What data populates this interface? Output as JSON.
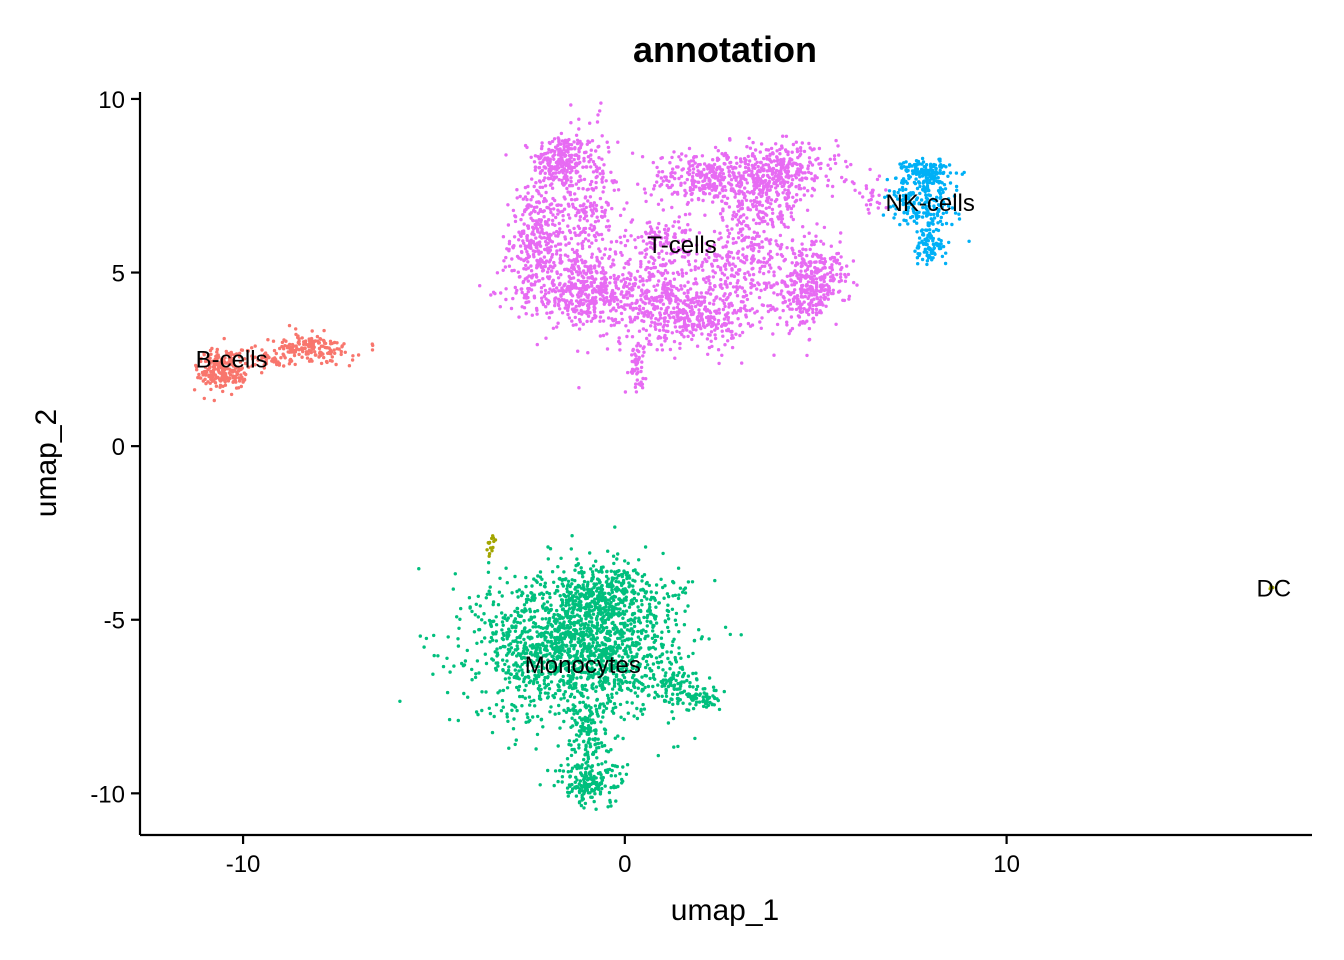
{
  "chart_data": {
    "type": "scatter",
    "title": "annotation",
    "xlabel": "umap_1",
    "ylabel": "umap_2",
    "xlim": [
      -12.7,
      18.0
    ],
    "ylim": [
      -11.2,
      10.2
    ],
    "x_ticks": [
      -10,
      0,
      10
    ],
    "x_tick_labels": [
      "-10",
      "0",
      "10"
    ],
    "y_ticks": [
      10,
      5,
      0,
      -5,
      -10
    ],
    "y_tick_labels": [
      "10",
      "5",
      "0",
      "-5",
      "-10"
    ],
    "grid": false,
    "legend": "none",
    "series": [
      {
        "name": "B-cells",
        "color": "#F8766D",
        "label_pos": [
          -10.3,
          2.5
        ],
        "blobs": [
          {
            "cx": -10.5,
            "cy": 2.2,
            "sx": 0.35,
            "sy": 0.32,
            "n": 230
          },
          {
            "cx": -9.2,
            "cy": 2.5,
            "sx": 0.35,
            "sy": 0.15,
            "n": 50
          },
          {
            "cx": -8.2,
            "cy": 2.8,
            "sx": 0.5,
            "sy": 0.2,
            "n": 160
          }
        ]
      },
      {
        "name": "DC",
        "color": "#A3A500",
        "label_pos": [
          17.0,
          -4.1
        ],
        "blobs": [
          {
            "cx": -3.5,
            "cy": -2.8,
            "sx": 0.06,
            "sy": 0.12,
            "n": 14
          },
          {
            "cx": 16.9,
            "cy": -4.1,
            "sx": 0.03,
            "sy": 0.03,
            "n": 3
          }
        ]
      },
      {
        "name": "Monocytes",
        "color": "#00BF7D",
        "label_pos": [
          -1.1,
          -6.3
        ],
        "blobs": [
          {
            "cx": -1.2,
            "cy": -5.8,
            "sx": 1.3,
            "sy": 1.05,
            "n": 1700
          },
          {
            "cx": -0.6,
            "cy": -4.2,
            "sx": 0.8,
            "sy": 0.4,
            "n": 300
          },
          {
            "cx": -1.0,
            "cy": -8.4,
            "sx": 0.25,
            "sy": 0.6,
            "n": 120
          },
          {
            "cx": -0.9,
            "cy": -9.7,
            "sx": 0.45,
            "sy": 0.3,
            "n": 170
          },
          {
            "cx": 1.2,
            "cy": -6.9,
            "sx": 0.5,
            "sy": 0.2,
            "n": 60
          },
          {
            "cx": 1.9,
            "cy": -7.3,
            "sx": 0.3,
            "sy": 0.15,
            "n": 70
          }
        ]
      },
      {
        "name": "NK-cells",
        "color": "#00B0F6",
        "label_pos": [
          8.0,
          7.0
        ],
        "blobs": [
          {
            "cx": 7.9,
            "cy": 7.9,
            "sx": 0.3,
            "sy": 0.2,
            "n": 150
          },
          {
            "cx": 7.8,
            "cy": 6.9,
            "sx": 0.45,
            "sy": 0.35,
            "n": 180
          },
          {
            "cx": 8.0,
            "cy": 5.8,
            "sx": 0.2,
            "sy": 0.3,
            "n": 90
          }
        ]
      },
      {
        "name": "T-cells",
        "color": "#E76BF3",
        "label_pos": [
          1.5,
          5.8
        ],
        "blobs": [
          {
            "cx": -1.7,
            "cy": 8.2,
            "sx": 0.35,
            "sy": 0.4,
            "n": 220
          },
          {
            "cx": -2.3,
            "cy": 6.0,
            "sx": 0.35,
            "sy": 0.8,
            "n": 300
          },
          {
            "cx": -1.0,
            "cy": 6.7,
            "sx": 0.4,
            "sy": 1.3,
            "n": 300
          },
          {
            "cx": -1.3,
            "cy": 4.5,
            "sx": 0.8,
            "sy": 0.5,
            "n": 350
          },
          {
            "cx": 0.6,
            "cy": 4.4,
            "sx": 0.9,
            "sy": 0.7,
            "n": 400
          },
          {
            "cx": 1.8,
            "cy": 3.7,
            "sx": 0.7,
            "sy": 0.35,
            "n": 250
          },
          {
            "cx": 3.0,
            "cy": 5.0,
            "sx": 0.7,
            "sy": 0.9,
            "n": 300
          },
          {
            "cx": 2.2,
            "cy": 7.7,
            "sx": 0.8,
            "sy": 0.4,
            "n": 300
          },
          {
            "cx": 4.0,
            "cy": 7.9,
            "sx": 0.8,
            "sy": 0.4,
            "n": 350
          },
          {
            "cx": 3.6,
            "cy": 6.7,
            "sx": 0.5,
            "sy": 0.5,
            "n": 150
          },
          {
            "cx": 4.7,
            "cy": 4.5,
            "sx": 0.35,
            "sy": 0.55,
            "n": 250
          },
          {
            "cx": 5.3,
            "cy": 4.9,
            "sx": 0.3,
            "sy": 0.5,
            "n": 120
          },
          {
            "cx": 1.0,
            "cy": 5.9,
            "sx": 0.4,
            "sy": 0.4,
            "n": 100
          },
          {
            "cx": 0.3,
            "cy": 2.3,
            "sx": 0.12,
            "sy": 0.3,
            "n": 45
          },
          {
            "cx": 6.4,
            "cy": 7.2,
            "sx": 0.25,
            "sy": 0.3,
            "n": 25
          }
        ]
      }
    ]
  }
}
